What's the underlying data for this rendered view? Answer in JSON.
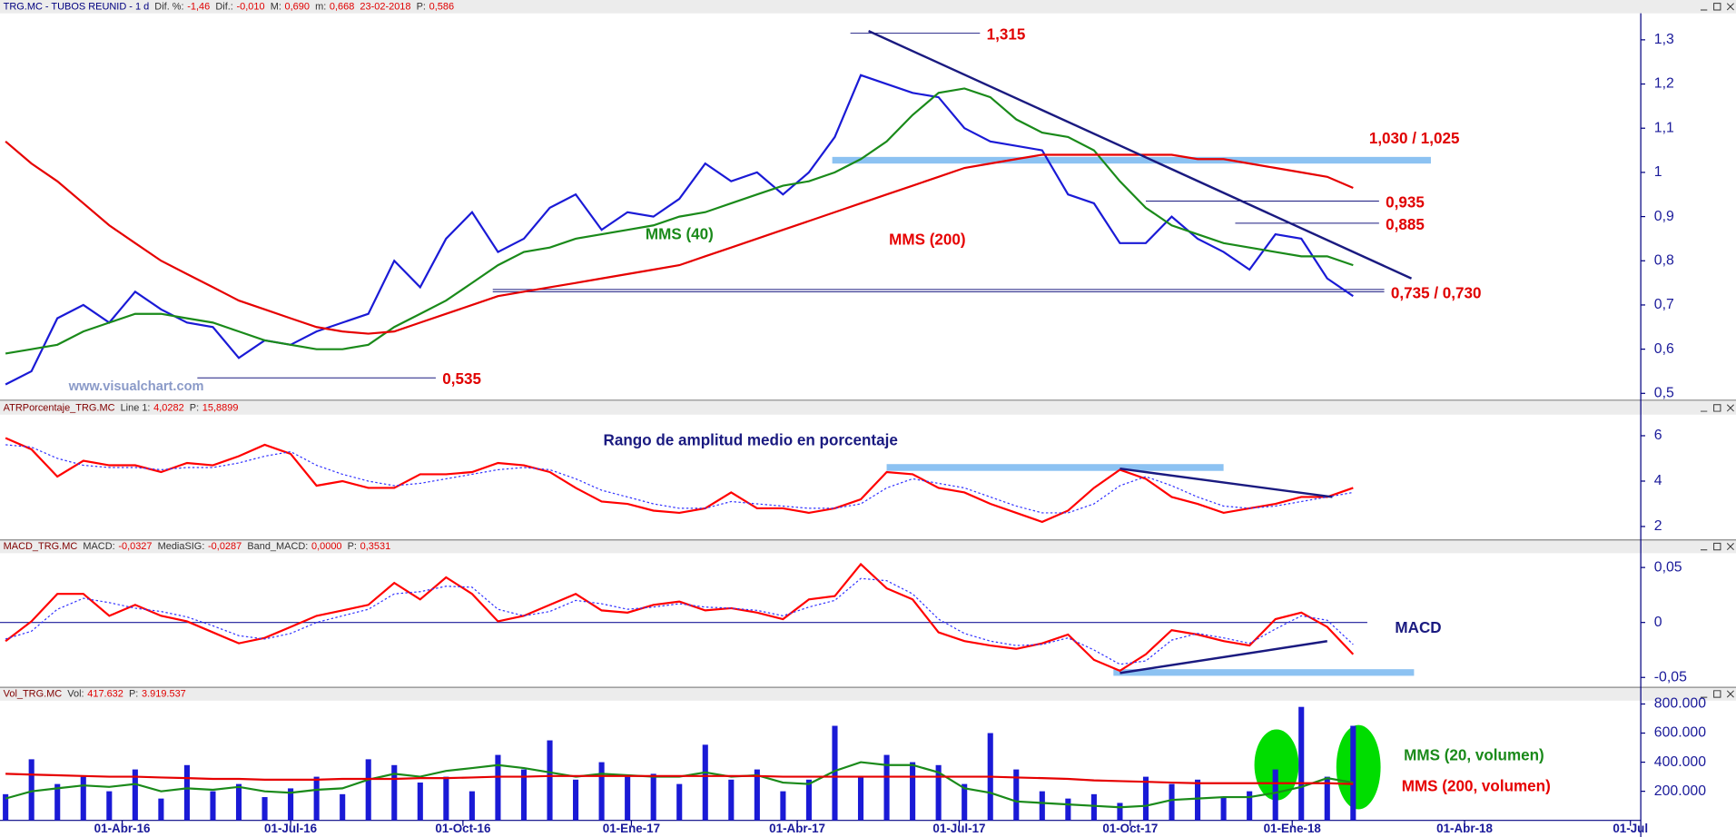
{
  "chart_data": [
    {
      "type": "line",
      "title": "TRG.MC - TUBOS REUNID - 1 d",
      "fields": [
        {
          "label": "Dif. %:",
          "value": "-1,46"
        },
        {
          "label": "Dif.:",
          "value": "-0,010"
        },
        {
          "label": "M:",
          "value": "0,690"
        },
        {
          "label": "m:",
          "value": "0,668"
        },
        {
          "value": "23-02-2018"
        },
        {
          "label": "P:",
          "value": "0,586"
        }
      ],
      "watermark": "www.visualchart.com",
      "x": [
        0,
        2,
        4,
        6,
        8,
        10,
        12,
        14,
        16,
        18,
        20,
        22,
        24,
        26,
        28,
        30,
        32,
        34,
        36,
        38,
        40,
        42,
        44,
        46,
        48,
        50,
        52,
        54,
        56,
        58,
        60,
        62,
        64,
        66,
        68,
        70,
        72,
        74,
        76,
        78,
        80,
        82,
        84,
        86,
        88,
        90,
        92,
        94,
        96,
        98,
        100,
        102,
        104
      ],
      "ylim": [
        0.487,
        1.36
      ],
      "yticks": [
        {
          "value": 0.5,
          "label": "0,5"
        },
        {
          "value": 0.6,
          "label": "0,6"
        },
        {
          "value": 0.7,
          "label": "0,7"
        },
        {
          "value": 0.8,
          "label": "0,8"
        },
        {
          "value": 0.9,
          "label": "0,9"
        },
        1,
        {
          "value": 1.1,
          "label": "1,1"
        },
        {
          "value": 1.2,
          "label": "1,2"
        },
        {
          "value": 1.3,
          "label": "1,3"
        }
      ],
      "series": [
        {
          "color": "#1a1ad6",
          "values": [
            0.52,
            0.55,
            0.67,
            0.7,
            0.66,
            0.73,
            0.69,
            0.66,
            0.65,
            0.58,
            0.62,
            0.61,
            0.64,
            0.66,
            0.68,
            0.8,
            0.74,
            0.85,
            0.91,
            0.82,
            0.85,
            0.92,
            0.95,
            0.87,
            0.91,
            0.9,
            0.94,
            1.02,
            0.98,
            1.0,
            0.95,
            1.0,
            1.08,
            1.22,
            1.2,
            1.18,
            1.17,
            1.1,
            1.07,
            1.06,
            1.05,
            0.95,
            0.93,
            0.84,
            0.84,
            0.9,
            0.85,
            0.82,
            0.78,
            0.86,
            0.85,
            0.76,
            0.72
          ]
        },
        {
          "name": "MMS (40)",
          "color": "#1a8a1a",
          "values": [
            0.59,
            0.6,
            0.61,
            0.64,
            0.66,
            0.68,
            0.68,
            0.67,
            0.66,
            0.64,
            0.62,
            0.61,
            0.6,
            0.6,
            0.61,
            0.65,
            0.68,
            0.71,
            0.75,
            0.79,
            0.82,
            0.83,
            0.85,
            0.86,
            0.87,
            0.88,
            0.9,
            0.91,
            0.93,
            0.95,
            0.97,
            0.98,
            1.0,
            1.03,
            1.07,
            1.13,
            1.18,
            1.19,
            1.17,
            1.12,
            1.09,
            1.08,
            1.05,
            0.98,
            0.92,
            0.88,
            0.86,
            0.84,
            0.83,
            0.82,
            0.81,
            0.81,
            0.79
          ]
        },
        {
          "name": "MMS (200)",
          "color": "#e60000",
          "values": [
            1.07,
            1.02,
            0.98,
            0.93,
            0.88,
            0.84,
            0.8,
            0.77,
            0.74,
            0.71,
            0.69,
            0.67,
            0.65,
            0.64,
            0.635,
            0.64,
            0.66,
            0.68,
            0.7,
            0.72,
            0.73,
            0.74,
            0.75,
            0.76,
            0.77,
            0.78,
            0.79,
            0.81,
            0.83,
            0.85,
            0.87,
            0.89,
            0.91,
            0.93,
            0.95,
            0.97,
            0.99,
            1.01,
            1.02,
            1.03,
            1.04,
            1.04,
            1.04,
            1.04,
            1.04,
            1.04,
            1.03,
            1.03,
            1.02,
            1.01,
            1.0,
            0.99,
            0.965
          ]
        }
      ],
      "levels": [
        {
          "label": "1,315",
          "values": [
            1.315
          ],
          "x": [
            65.2,
            75.2
          ]
        },
        {
          "label": "1,030 / 1,025",
          "values": [
            1.03,
            1.025
          ],
          "x": [
            63.8,
            110
          ],
          "band": true
        },
        {
          "label": "0,935",
          "values": [
            0.935
          ],
          "x": [
            88,
            106
          ]
        },
        {
          "label": "0,885",
          "values": [
            0.885
          ],
          "x": [
            94.9,
            106
          ]
        },
        {
          "label": "0,735 / 0,730",
          "values": [
            0.735,
            0.73
          ],
          "x": [
            37.6,
            106.4
          ]
        },
        {
          "label": "0,535",
          "values": [
            0.535
          ],
          "x": [
            14.8,
            33.2
          ]
        }
      ],
      "trendlines": [
        {
          "x": [
            66.6,
            108.5
          ],
          "y": [
            1.32,
            0.76
          ]
        }
      ]
    },
    {
      "type": "line",
      "title": "ATRPorcentaje_TRG.MC",
      "fields": [
        {
          "label": "Line 1:",
          "value": "4,0282"
        },
        {
          "label": "P:",
          "value": "15,8899"
        }
      ],
      "annotations": [
        {
          "text": "Rango de amplitud medio en porcentaje"
        }
      ],
      "x": [
        0,
        2,
        4,
        6,
        8,
        10,
        12,
        14,
        16,
        18,
        20,
        22,
        24,
        26,
        28,
        30,
        32,
        34,
        36,
        38,
        40,
        42,
        44,
        46,
        48,
        50,
        52,
        54,
        56,
        58,
        60,
        62,
        64,
        66,
        68,
        70,
        72,
        74,
        76,
        78,
        80,
        82,
        84,
        86,
        88,
        90,
        92,
        94,
        96,
        98,
        100,
        102,
        104
      ],
      "ylim": [
        1.41,
        6.93
      ],
      "yticks": [
        2,
        4,
        6
      ],
      "series": [
        {
          "color": "#ff0000",
          "values": [
            5.9,
            5.4,
            4.2,
            4.9,
            4.7,
            4.7,
            4.4,
            4.8,
            4.7,
            5.1,
            5.6,
            5.2,
            3.8,
            4.0,
            3.7,
            3.7,
            4.3,
            4.3,
            4.4,
            4.8,
            4.7,
            4.4,
            3.7,
            3.1,
            3.0,
            2.7,
            2.6,
            2.8,
            3.5,
            2.8,
            2.8,
            2.6,
            2.8,
            3.2,
            4.4,
            4.3,
            3.7,
            3.5,
            3.0,
            2.6,
            2.2,
            2.7,
            3.7,
            4.5,
            4.1,
            3.3,
            3.0,
            2.6,
            2.8,
            3.0,
            3.3,
            3.3,
            3.7
          ]
        },
        {
          "color": "#3333ff",
          "dash": true,
          "values": [
            5.6,
            5.5,
            5.0,
            4.7,
            4.6,
            4.6,
            4.5,
            4.6,
            4.6,
            4.8,
            5.1,
            5.3,
            4.7,
            4.3,
            4.0,
            3.8,
            3.9,
            4.1,
            4.3,
            4.5,
            4.6,
            4.5,
            4.1,
            3.6,
            3.3,
            3.0,
            2.8,
            2.8,
            3.1,
            3.0,
            2.9,
            2.8,
            2.8,
            3.0,
            3.7,
            4.1,
            3.9,
            3.7,
            3.3,
            2.9,
            2.6,
            2.6,
            3.0,
            3.8,
            4.2,
            3.8,
            3.3,
            2.9,
            2.8,
            2.9,
            3.1,
            3.3,
            3.5
          ]
        }
      ],
      "bands": [
        {
          "values": [
            4.45,
            4.75
          ],
          "x": [
            68,
            94
          ]
        }
      ],
      "trendlines": [
        {
          "x": [
            86,
            102.4
          ],
          "y": [
            4.55,
            3.3
          ]
        }
      ]
    },
    {
      "type": "line",
      "title": "MACD_TRG.MC",
      "fields": [
        {
          "label": "MACD:",
          "value": "-0,0327"
        },
        {
          "label": "MediaSIG:",
          "value": "-0,0287"
        },
        {
          "label": "Band_MACD:",
          "value": "0,0000"
        },
        {
          "label": "P:",
          "value": "0,3531"
        }
      ],
      "annotations": [
        {
          "text": "MACD"
        }
      ],
      "x": [
        0,
        2,
        4,
        6,
        8,
        10,
        12,
        14,
        16,
        18,
        20,
        22,
        24,
        26,
        28,
        30,
        32,
        34,
        36,
        38,
        40,
        42,
        44,
        46,
        48,
        50,
        52,
        54,
        56,
        58,
        60,
        62,
        64,
        66,
        68,
        70,
        72,
        74,
        76,
        78,
        80,
        82,
        84,
        86,
        88,
        90,
        92,
        94,
        96,
        98,
        100,
        102,
        104
      ],
      "ylim": [
        -0.059,
        0.063
      ],
      "yticks": [
        {
          "value": -0.05,
          "label": "-0,05"
        },
        0,
        {
          "value": 0.05,
          "label": "0,05"
        }
      ],
      "zero_line": true,
      "series": [
        {
          "color": "#ff0000",
          "values": [
            -0.017,
            0.001,
            0.026,
            0.026,
            0.006,
            0.016,
            0.006,
            0.001,
            -0.009,
            -0.019,
            -0.014,
            -0.004,
            0.006,
            0.011,
            0.016,
            0.036,
            0.021,
            0.041,
            0.026,
            0.001,
            0.006,
            0.016,
            0.026,
            0.011,
            0.009,
            0.016,
            0.019,
            0.011,
            0.013,
            0.009,
            0.003,
            0.021,
            0.024,
            0.053,
            0.031,
            0.021,
            -0.009,
            -0.017,
            -0.021,
            -0.024,
            -0.019,
            -0.011,
            -0.034,
            -0.044,
            -0.029,
            -0.007,
            -0.011,
            -0.017,
            -0.021,
            0.003,
            0.009,
            -0.004,
            -0.029
          ]
        },
        {
          "color": "#3333ff",
          "dash": true,
          "values": [
            -0.015,
            -0.008,
            0.012,
            0.022,
            0.018,
            0.013,
            0.01,
            0.005,
            -0.003,
            -0.012,
            -0.015,
            -0.01,
            0,
            0.006,
            0.012,
            0.026,
            0.028,
            0.033,
            0.032,
            0.012,
            0.006,
            0.01,
            0.02,
            0.017,
            0.012,
            0.014,
            0.017,
            0.014,
            0.013,
            0.011,
            0.006,
            0.014,
            0.02,
            0.04,
            0.038,
            0.026,
            0.003,
            -0.01,
            -0.017,
            -0.021,
            -0.02,
            -0.014,
            -0.025,
            -0.038,
            -0.035,
            -0.016,
            -0.01,
            -0.014,
            -0.019,
            -0.006,
            0.006,
            0.002,
            -0.02
          ]
        }
      ],
      "bands": [
        {
          "values": [
            -0.0485,
            -0.0425
          ],
          "x": [
            85.5,
            108.7
          ]
        }
      ],
      "trendlines": [
        {
          "x": [
            86,
            102
          ],
          "y": [
            -0.046,
            -0.017
          ]
        }
      ]
    },
    {
      "type": "bar",
      "title": "Vol_TRG.MC",
      "fields": [
        {
          "label": "Vol:",
          "value": "417.632"
        },
        {
          "label": "P:",
          "value": "3.919.537"
        }
      ],
      "x": [
        0,
        2,
        4,
        6,
        8,
        10,
        12,
        14,
        16,
        18,
        20,
        22,
        24,
        26,
        28,
        30,
        32,
        34,
        36,
        38,
        40,
        42,
        44,
        46,
        48,
        50,
        52,
        54,
        56,
        58,
        60,
        62,
        64,
        66,
        68,
        70,
        72,
        74,
        76,
        78,
        80,
        82,
        84,
        86,
        88,
        90,
        92,
        94,
        96,
        98,
        100,
        102,
        104
      ],
      "xlim": [
        -0.43,
        126.2
      ],
      "xticks": [
        {
          "value": 9,
          "label": "01-Abr-16"
        },
        {
          "value": 22,
          "label": "01-Jul-16"
        },
        {
          "value": 35.3,
          "label": "01-Oct-16"
        },
        {
          "value": 48.3,
          "label": "01-Ene-17"
        },
        {
          "value": 61.1,
          "label": "01-Abr-17"
        },
        {
          "value": 73.6,
          "label": "01-Jul-17"
        },
        {
          "value": 86.8,
          "label": "01-Oct-17"
        },
        {
          "value": 99.3,
          "label": "01-Ene-18"
        },
        {
          "value": 112.6,
          "label": "01-Abr-18"
        },
        {
          "value": 125.4,
          "label": "01-Jul"
        }
      ],
      "ylim": [
        0,
        823000
      ],
      "yticks": [
        {
          "value": 200000,
          "label": "200.000"
        },
        {
          "value": 400000,
          "label": "400.000"
        },
        {
          "value": 600000,
          "label": "600.000"
        },
        {
          "value": 800000,
          "label": "800.000"
        }
      ],
      "series": [
        {
          "color": "#1a1ad6",
          "values": [
            180000,
            420000,
            250000,
            300000,
            200000,
            350000,
            150000,
            380000,
            200000,
            250000,
            160000,
            220000,
            300000,
            180000,
            420000,
            380000,
            260000,
            300000,
            200000,
            450000,
            350000,
            550000,
            280000,
            400000,
            300000,
            320000,
            250000,
            520000,
            280000,
            350000,
            200000,
            280000,
            650000,
            300000,
            450000,
            400000,
            380000,
            250000,
            600000,
            350000,
            200000,
            150000,
            180000,
            120000,
            300000,
            250000,
            280000,
            160000,
            200000,
            350000,
            780000,
            300000,
            650000
          ]
        },
        {
          "name": "MMS (20, volumen)",
          "type": "line",
          "color": "#1a8a1a",
          "values": [
            150000,
            200000,
            220000,
            240000,
            230000,
            250000,
            200000,
            220000,
            210000,
            230000,
            200000,
            190000,
            210000,
            220000,
            280000,
            320000,
            300000,
            340000,
            360000,
            380000,
            360000,
            330000,
            300000,
            320000,
            310000,
            300000,
            300000,
            330000,
            300000,
            310000,
            260000,
            250000,
            340000,
            400000,
            380000,
            380000,
            330000,
            220000,
            190000,
            130000,
            120000,
            110000,
            100000,
            90000,
            100000,
            140000,
            150000,
            160000,
            160000,
            190000,
            230000,
            290000,
            260000
          ]
        },
        {
          "name": "MMS (200, volumen)",
          "type": "line",
          "color": "#e60000",
          "values": [
            320000,
            315000,
            310000,
            305000,
            300000,
            300000,
            295000,
            290000,
            285000,
            285000,
            280000,
            280000,
            280000,
            285000,
            285000,
            285000,
            290000,
            290000,
            295000,
            300000,
            300000,
            305000,
            305000,
            305000,
            305000,
            305000,
            305000,
            305000,
            305000,
            305000,
            300000,
            300000,
            300000,
            300000,
            300000,
            300000,
            300000,
            300000,
            300000,
            295000,
            290000,
            285000,
            275000,
            270000,
            265000,
            260000,
            255000,
            255000,
            255000,
            255000,
            255000,
            255000,
            250000
          ]
        }
      ]
    }
  ]
}
